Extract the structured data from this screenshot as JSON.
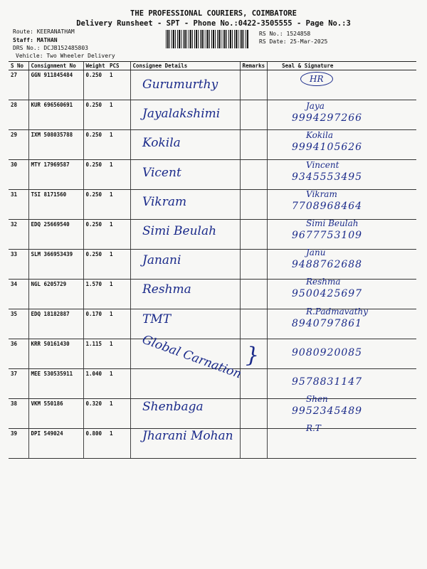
{
  "header": {
    "company": "THE PROFESSIONAL COURIERS, COIMBATORE",
    "subtitle": "Delivery Runsheet - SPT - Phone No.:0422-3505555 - Page No.:3",
    "route": "Route: KEERANATHAM",
    "staff": "Staff: MATHAN",
    "drs": "DRS No.: DCJB152485803",
    "vehicle": "Vehicle: Two Wheeler Delivery",
    "rs_no": "RS No.: 1524858",
    "rs_date": "RS Date: 25-Mar-2025"
  },
  "columns": [
    "S No",
    "Consignment No",
    "Weight",
    "PCS",
    "Consignee Details",
    "Remarks",
    "Seal & Signature"
  ],
  "rows": [
    {
      "sno": "27",
      "cn": "GGN 911845484",
      "wt": "0.250",
      "pcs": "1",
      "name": "Gurumurthy",
      "sig": "HR",
      "phone": ""
    },
    {
      "sno": "28",
      "cn": "KUR 696560691",
      "wt": "0.250",
      "pcs": "1",
      "name": "Jayalakshimi",
      "sig": "Jaya",
      "phone": "9994297266"
    },
    {
      "sno": "29",
      "cn": "IXM 508035788",
      "wt": "0.250",
      "pcs": "1",
      "name": "Kokila",
      "sig": "Kokila",
      "phone": "9994105626"
    },
    {
      "sno": "30",
      "cn": "MTY 17969587",
      "wt": "0.250",
      "pcs": "1",
      "name": "Vicent",
      "sig": "Vincent",
      "phone": "9345553495"
    },
    {
      "sno": "31",
      "cn": "TSI 8171560",
      "wt": "0.250",
      "pcs": "1",
      "name": "Vikram",
      "sig": "Vikram",
      "phone": "7708968464"
    },
    {
      "sno": "32",
      "cn": "EDQ 25669540",
      "wt": "0.250",
      "pcs": "1",
      "name": "Simi Beulah",
      "sig": "Simi Beulah",
      "phone": "9677753109"
    },
    {
      "sno": "33",
      "cn": "SLM 366953439",
      "wt": "0.250",
      "pcs": "1",
      "name": "Janani",
      "sig": "Janu",
      "phone": "9488762688"
    },
    {
      "sno": "34",
      "cn": "NGL 6205729",
      "wt": "1.570",
      "pcs": "1",
      "name": "Reshma",
      "sig": "Reshma",
      "phone": "9500425697"
    },
    {
      "sno": "35",
      "cn": "EDQ 18182887",
      "wt": "0.170",
      "pcs": "1",
      "name": "TMT",
      "sig": "R.Padmavathy",
      "phone": "8940797861"
    },
    {
      "sno": "36",
      "cn": "KRR 50161430",
      "wt": "1.115",
      "pcs": "1",
      "name": "",
      "sig": "",
      "phone": "9080920085"
    },
    {
      "sno": "37",
      "cn": "MEE 530535911",
      "wt": "1.040",
      "pcs": "1",
      "name": "",
      "sig": "",
      "phone": "9578831147"
    },
    {
      "sno": "38",
      "cn": "VKM 550186",
      "wt": "0.320",
      "pcs": "1",
      "name": "Shenbaga",
      "sig": "Shen",
      "phone": "9952345489"
    },
    {
      "sno": "39",
      "cn": "DPI 549024",
      "wt": "0.800",
      "pcs": "1",
      "name": "Jharani Mohan",
      "sig": "R.T",
      "phone": ""
    }
  ],
  "shared_name_36_37": "Global Carnation"
}
